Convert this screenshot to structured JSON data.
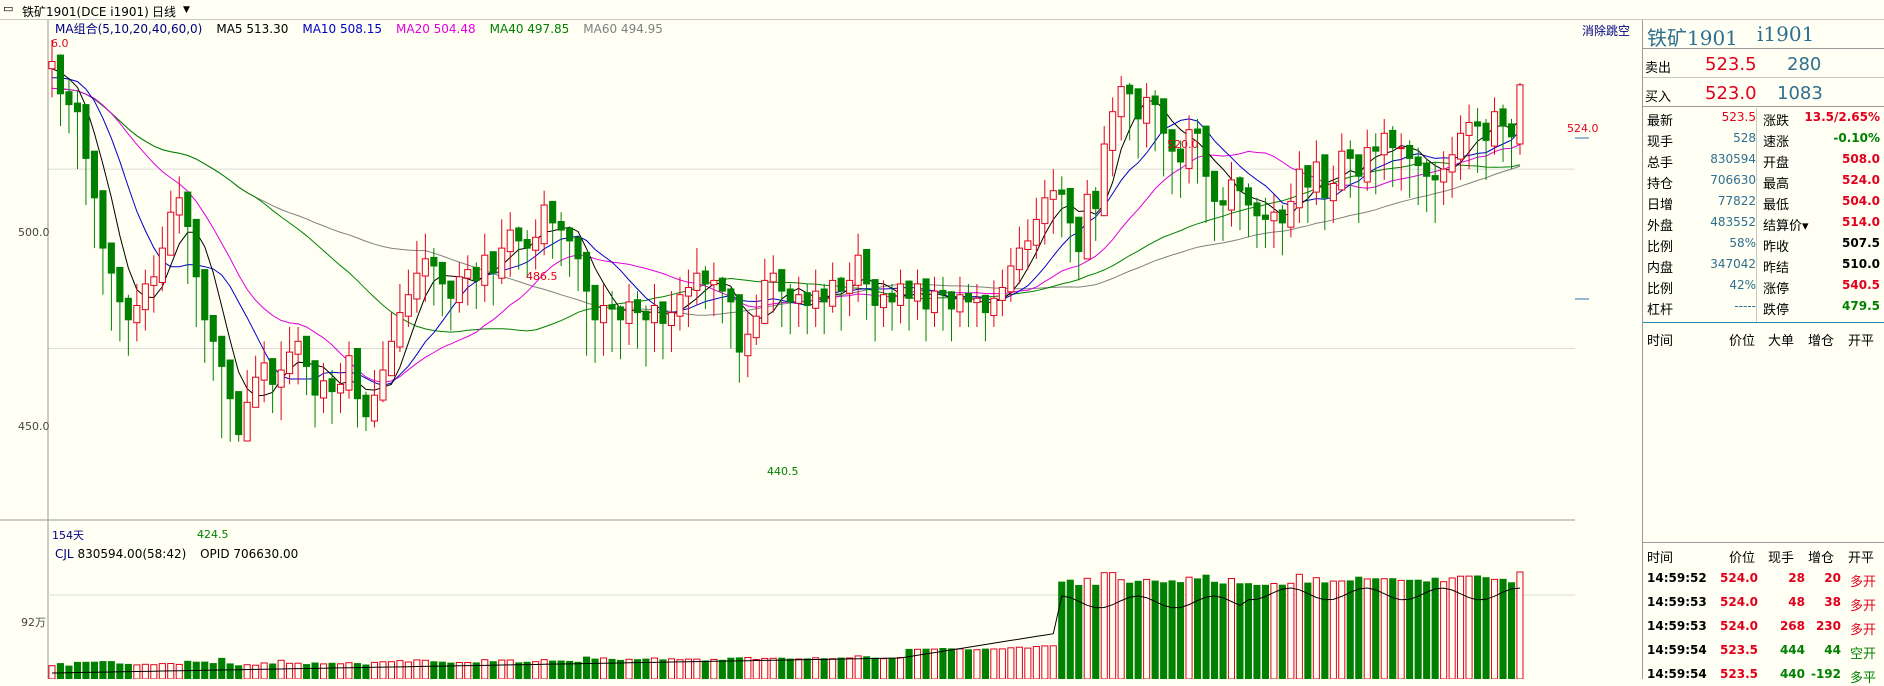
{
  "window": {
    "title": "铁矿1901(DCE i1901)",
    "period": "日线"
  },
  "ma_legend": [
    {
      "label": "MA组合(5,10,20,40,60,0)",
      "color": "#000080"
    },
    {
      "label": "MA5 513.30",
      "color": "#000000"
    },
    {
      "label": "MA10 508.15",
      "color": "#0000c8"
    },
    {
      "label": "MA20 504.48",
      "color": "#e000e0"
    },
    {
      "label": "MA40 497.85",
      "color": "#008000"
    },
    {
      "label": "MA60 494.95",
      "color": "#808080"
    }
  ],
  "clear_button": "消除跳空",
  "price_axis": [
    "500.0",
    "450.0"
  ],
  "volume_axis": [
    "92万"
  ],
  "bars_count": "154天",
  "annotations": [
    "6.0",
    "486.5",
    "424.5",
    "440.5",
    "520.0",
    "524.0"
  ],
  "volume_legend": {
    "cjl": "CJL",
    "value": "830594.00(58:42)",
    "opid": "OPID 706630.00"
  },
  "quote": {
    "name": "铁矿1901",
    "code": "i1901",
    "sell_label": "卖出",
    "sell_price": "523.5",
    "sell_qty": "280",
    "buy_label": "买入",
    "buy_price": "523.0",
    "buy_qty": "1083"
  },
  "stats": [
    {
      "l": "最新",
      "v": "523.5",
      "vc": "red",
      "l2": "涨跌",
      "v2": "13.5/2.65%",
      "v2c": "red"
    },
    {
      "l": "现手",
      "v": "528",
      "vc": "teal",
      "l2": "速涨",
      "v2": "-0.10%",
      "v2c": "green"
    },
    {
      "l": "总手",
      "v": "830594",
      "vc": "teal",
      "l2": "开盘",
      "v2": "508.0",
      "v2c": "red"
    },
    {
      "l": "持仓",
      "v": "706630",
      "vc": "teal",
      "l2": "最高",
      "v2": "524.0",
      "v2c": "red"
    },
    {
      "l": "日增",
      "v": "77822",
      "vc": "teal",
      "l2": "最低",
      "v2": "504.0",
      "v2c": "red"
    },
    {
      "l": "外盘",
      "v": "483552",
      "vc": "teal",
      "l2": "结算价▾",
      "v2": "514.0",
      "v2c": "red"
    },
    {
      "l": "比例",
      "v": "58%",
      "vc": "teal",
      "l2": "昨收",
      "v2": "507.5",
      "v2c": "black"
    },
    {
      "l": "内盘",
      "v": "347042",
      "vc": "teal",
      "l2": "昨结",
      "v2": "510.0",
      "v2c": "black"
    },
    {
      "l": "比例",
      "v": "42%",
      "vc": "teal",
      "l2": "涨停",
      "v2": "540.5",
      "v2c": "red"
    },
    {
      "l": "杠杆",
      "v": "-----",
      "vc": "teal",
      "l2": "跌停",
      "v2": "479.5",
      "v2c": "green"
    }
  ],
  "ticks_header": [
    "时间",
    "价位",
    "大单",
    "增仓",
    "开平"
  ],
  "ticks_header2": [
    "时间",
    "价位",
    "现手",
    "增仓",
    "开平"
  ],
  "ticks": [
    {
      "time": "14:59:52",
      "price": "524.0",
      "qty": "28",
      "oi": "20",
      "type": "多开",
      "c": "red"
    },
    {
      "time": "14:59:53",
      "price": "524.0",
      "qty": "48",
      "oi": "38",
      "type": "多开",
      "c": "red"
    },
    {
      "time": "14:59:53",
      "price": "524.0",
      "qty": "268",
      "oi": "230",
      "type": "多开",
      "c": "red"
    },
    {
      "time": "14:59:54",
      "price": "523.5",
      "qty": "444",
      "oi": "44",
      "type": "空开",
      "c": "green"
    },
    {
      "time": "14:59:54",
      "price": "523.5",
      "qty": "440",
      "oi": "-192",
      "type": "多平",
      "c": "green"
    }
  ],
  "chart_data": {
    "type": "candlestick",
    "ylim": [
      420,
      540
    ],
    "close": [
      530,
      521,
      518,
      516,
      503,
      492,
      478,
      471,
      463,
      458,
      462,
      468,
      470,
      478,
      488,
      492,
      484,
      470,
      458,
      452,
      445,
      436,
      426,
      435,
      442,
      446,
      440,
      444,
      449,
      452,
      445,
      437,
      441,
      438,
      440,
      448,
      436,
      431,
      437,
      444,
      452,
      460,
      465,
      471,
      475,
      473,
      468,
      464,
      470,
      472,
      469,
      476,
      471,
      478,
      483,
      480,
      478,
      481,
      490,
      485,
      483,
      480,
      475,
      466,
      458,
      462,
      461,
      458,
      463,
      460,
      458,
      462,
      457,
      460,
      465,
      467,
      471,
      468,
      469,
      466,
      463,
      449,
      454,
      459,
      469,
      471,
      466,
      463,
      465,
      462,
      466,
      463,
      469,
      466,
      469,
      476,
      468,
      462,
      465,
      463,
      468,
      464,
      468,
      461,
      466,
      465,
      461,
      465,
      463,
      464,
      460,
      464,
      467,
      473,
      478,
      480,
      486,
      492,
      494,
      493,
      485,
      477,
      493,
      489,
      507,
      516,
      523,
      521,
      514,
      520,
      518,
      510,
      505,
      502,
      511,
      510,
      498,
      491,
      490,
      497,
      494,
      490,
      487,
      486,
      488,
      485,
      491,
      500,
      495,
      502,
      492,
      496,
      505,
      503,
      498,
      506,
      505,
      510,
      506,
      506,
      503,
      501,
      498,
      497,
      500,
      504,
      510,
      513,
      512,
      508,
      516,
      512,
      509,
      523.5
    ],
    "low": [
      520,
      512,
      510,
      500,
      490,
      478,
      465,
      455,
      452,
      448,
      452,
      455,
      460,
      466,
      476,
      482,
      468,
      456,
      446,
      441,
      425,
      424,
      424,
      430,
      435,
      435,
      432,
      430,
      440,
      440,
      437,
      428,
      432,
      429,
      432,
      436,
      428,
      427,
      428,
      435,
      443,
      449,
      456,
      460,
      463,
      462,
      459,
      455,
      460,
      462,
      461,
      463,
      462,
      468,
      470,
      472,
      470,
      472,
      476,
      475,
      473,
      470,
      466,
      448,
      446,
      448,
      449,
      447,
      451,
      450,
      445,
      449,
      447,
      449,
      455,
      456,
      462,
      461,
      459,
      457,
      450,
      440.5,
      442,
      451,
      459,
      460,
      456,
      454,
      456,
      454,
      456,
      454,
      460,
      455,
      459,
      463,
      458,
      452,
      456,
      455,
      457,
      455,
      458,
      452,
      456,
      455,
      452,
      456,
      456,
      456,
      452,
      456,
      459,
      463,
      468,
      472,
      475,
      479,
      482,
      481,
      474,
      469,
      478,
      480,
      490,
      498,
      508,
      508,
      503,
      506,
      505,
      498,
      493,
      492,
      496,
      496,
      485,
      480,
      480,
      484,
      483,
      481,
      478,
      478,
      478,
      476,
      481,
      485,
      485,
      490,
      483,
      485,
      494,
      492,
      485,
      494,
      493,
      497,
      495,
      494,
      492,
      490,
      488,
      485,
      490,
      492,
      497,
      500,
      499,
      497,
      504,
      502,
      500,
      504
    ],
    "high": [
      536,
      532,
      525,
      522,
      512,
      500,
      488,
      478,
      470,
      465,
      468,
      472,
      476,
      484,
      494,
      498,
      490,
      476,
      466,
      458,
      452,
      440,
      436,
      444,
      448,
      452,
      447,
      452,
      456,
      456,
      450,
      444,
      446,
      444,
      446,
      452,
      442,
      438,
      444,
      452,
      460,
      468,
      472,
      480,
      482,
      478,
      474,
      468,
      474,
      476,
      474,
      482,
      477,
      486,
      488,
      484,
      483,
      486,
      494,
      490,
      488,
      484,
      478,
      470,
      464,
      468,
      466,
      462,
      468,
      466,
      462,
      468,
      462,
      466,
      470,
      472,
      478,
      473,
      474,
      470,
      467,
      458,
      460,
      465,
      475,
      476,
      472,
      468,
      470,
      468,
      472,
      468,
      474,
      470,
      474,
      482,
      475,
      466,
      469,
      468,
      472,
      469,
      472,
      466,
      470,
      470,
      466,
      470,
      468,
      468,
      465,
      469,
      472,
      478,
      484,
      486,
      492,
      497,
      500,
      498,
      492,
      484,
      497,
      495,
      512,
      520,
      526,
      524,
      520,
      524,
      522,
      514,
      510,
      508,
      515,
      514,
      505,
      496,
      495,
      502,
      498,
      496,
      492,
      492,
      493,
      490,
      496,
      505,
      500,
      508,
      498,
      501,
      510,
      508,
      503,
      511,
      510,
      514,
      512,
      510,
      508,
      506,
      503,
      502,
      505,
      509,
      515,
      518,
      517,
      514,
      520,
      518,
      514,
      524
    ]
  }
}
